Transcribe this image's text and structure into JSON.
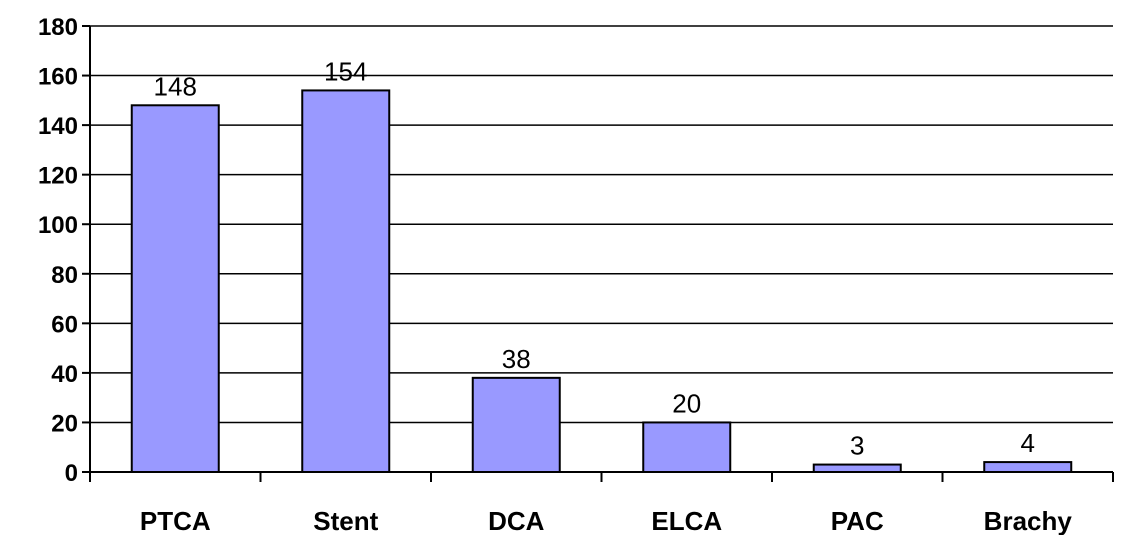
{
  "chart_data": {
    "type": "bar",
    "categories": [
      "PTCA",
      "Stent",
      "DCA",
      "ELCA",
      "PAC",
      "Brachy"
    ],
    "values": [
      148,
      154,
      38,
      20,
      3,
      4
    ],
    "data_labels": [
      "148",
      "154",
      "38",
      "20",
      "3",
      "4"
    ],
    "y_ticks": [
      "0",
      "20",
      "40",
      "60",
      "80",
      "100",
      "120",
      "140",
      "160",
      "180"
    ],
    "ylim": [
      0,
      180
    ],
    "y_tick_step": 20,
    "grid": true,
    "legend": "none",
    "bar_color": "#9999ff",
    "title": "",
    "xlabel": "",
    "ylabel": ""
  }
}
